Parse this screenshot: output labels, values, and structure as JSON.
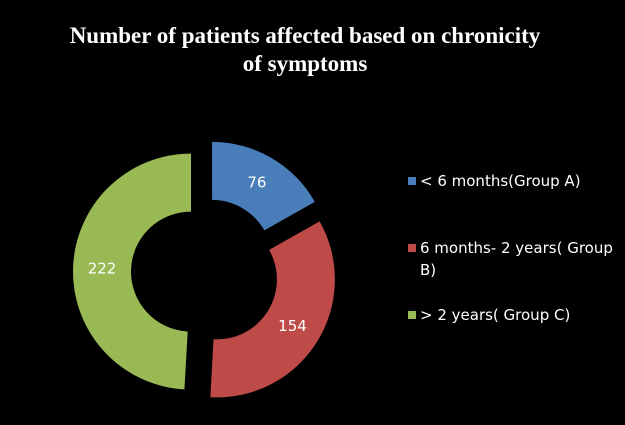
{
  "chart_data": {
    "type": "doughnut",
    "title": "Number of patients affected based on chronicity of symptoms",
    "categories": [
      "< 6 months(Group A)",
      "6 months- 2 years( Group B)",
      "> 2 years( Group C)"
    ],
    "values": [
      76,
      154,
      222
    ],
    "colors": [
      "#4a7ebb",
      "#be4b48",
      "#98b954"
    ],
    "legend": "right"
  }
}
